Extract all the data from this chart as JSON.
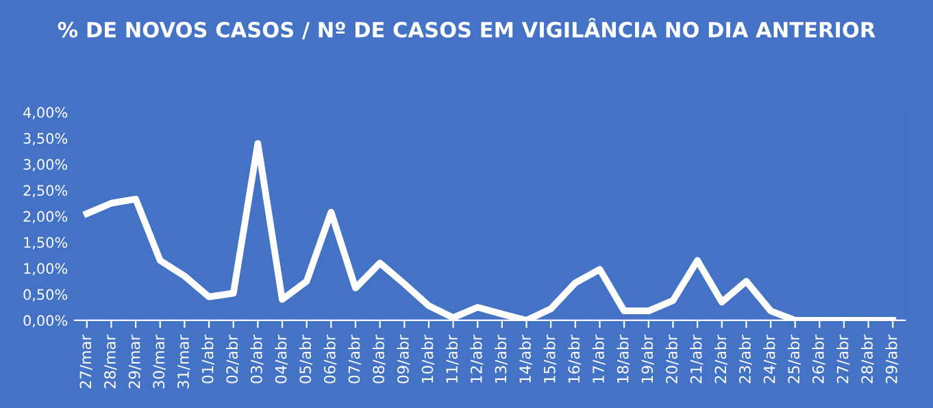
{
  "chart_data": {
    "type": "line",
    "title": "% DE NOVOS CASOS / Nº DE CASOS EM VIGILÂNCIA NO DIA ANTERIOR",
    "categories": [
      "27/mar",
      "28/mar",
      "29/mar",
      "30/mar",
      "31/mar",
      "01/abr",
      "02/abr",
      "03/abr",
      "04/abr",
      "05/abr",
      "06/abr",
      "07/abr",
      "08/abr",
      "09/abr",
      "10/abr",
      "11/abr",
      "12/abr",
      "13/abr",
      "14/abr",
      "15/abr",
      "16/abr",
      "17/abr",
      "18/abr",
      "19/abr",
      "20/abr",
      "21/abr",
      "22/abr",
      "23/abr",
      "24/abr",
      "25/abr",
      "26/abr",
      "27/abr",
      "28/abr",
      "29/abr"
    ],
    "series": [
      {
        "color": "#ffffff",
        "values": [
          2.05,
          2.25,
          2.33,
          1.15,
          0.85,
          0.45,
          0.52,
          3.4,
          0.4,
          0.75,
          2.08,
          0.62,
          1.1,
          0.7,
          0.28,
          0.05,
          0.25,
          0.12,
          0.0,
          0.22,
          0.72,
          0.98,
          0.18,
          0.18,
          0.38,
          1.15,
          0.35,
          0.75,
          0.18,
          0.0,
          0.0,
          0.0,
          0.0,
          0.0
        ]
      }
    ],
    "ylim": [
      0,
      4
    ],
    "yticks": [
      {
        "value": 0,
        "label": "0,00%"
      },
      {
        "value": 0.5,
        "label": "0,50%"
      },
      {
        "value": 1,
        "label": "1,00%"
      },
      {
        "value": 1.5,
        "label": "1,50%"
      },
      {
        "value": 2,
        "label": "2,00%"
      },
      {
        "value": 2.5,
        "label": "2,50%"
      },
      {
        "value": 3,
        "label": "3,00%"
      },
      {
        "value": 3.5,
        "label": "3,50%"
      },
      {
        "value": 4,
        "label": "4,00%"
      }
    ],
    "grid": false,
    "legend": false,
    "marker": "none",
    "line_style": "solid"
  }
}
